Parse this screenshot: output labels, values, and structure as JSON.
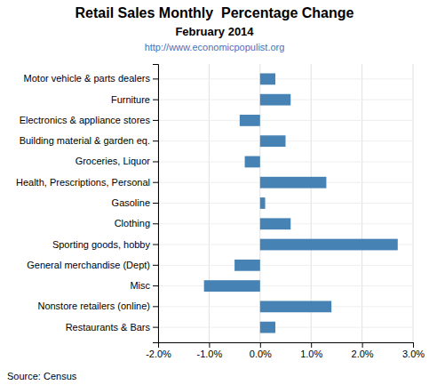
{
  "chart_data": {
    "type": "bar",
    "orientation": "horizontal",
    "title": "Retail Sales Monthly  Percentage Change",
    "subtitle": "February 2014",
    "annotations": [
      "http://www.economicpopulist.org",
      "Source: Census"
    ],
    "categories": [
      "Motor vehicle & parts dealers",
      "Furniture",
      "Electronics & appliance stores",
      "Building material & garden eq.",
      "Groceries, Liquor",
      "Health, Prescriptions, Personal",
      "Gasoline",
      "Clothing",
      "Sporting goods, hobby",
      "General merchandise (Dept)",
      "Misc",
      "Nonstore retailers (online)",
      "Restaurants & Bars"
    ],
    "values": [
      0.3,
      0.6,
      -0.4,
      0.5,
      -0.3,
      1.3,
      0.1,
      0.6,
      2.7,
      -0.5,
      -1.1,
      1.4,
      0.3
    ],
    "xlim": [
      -2.0,
      3.0
    ],
    "xticks": [
      {
        "value": -2.0,
        "label": "-2.0%"
      },
      {
        "value": -1.0,
        "label": "-1.0%"
      },
      {
        "value": 0.0,
        "label": "0.0%"
      },
      {
        "value": 1.0,
        "label": "1.0%"
      },
      {
        "value": 2.0,
        "label": "2.0%"
      },
      {
        "value": 3.0,
        "label": "3.0%"
      }
    ],
    "grid": true
  }
}
